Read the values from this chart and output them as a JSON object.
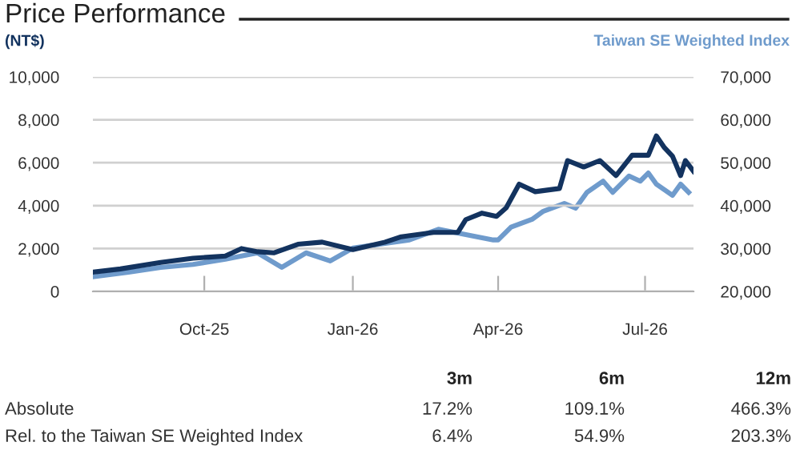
{
  "chart_data": {
    "type": "line",
    "title": "Price Performance",
    "ylabel": "(NT$)",
    "y2label": "Taiwan SE Weighted Index",
    "series": [
      {
        "color": "#13335f",
        "x": [
          "2025-07-24",
          "2025-08-10",
          "2025-09-04",
          "2025-09-24",
          "2025-10-14",
          "2025-10-24",
          "2025-11-03",
          "2025-11-13",
          "2025-11-28",
          "2025-12-13",
          "2026-01-01",
          "2026-01-21",
          "2026-01-31",
          "2026-02-20",
          "2026-03-07",
          "2026-03-12",
          "2026-03-22",
          "2026-03-31",
          "2026-04-06",
          "2026-04-14",
          "2026-04-24",
          "2026-05-09",
          "2026-05-14",
          "2026-05-24",
          "2026-06-03",
          "2026-06-13",
          "2026-06-23",
          "2026-07-03",
          "2026-07-08",
          "2026-07-13",
          "2026-07-18",
          "2026-07-23",
          "2026-07-26",
          "2026-07-31"
        ],
        "values": [
          900,
          1050,
          1350,
          1550,
          1650,
          2000,
          1850,
          1800,
          2200,
          2300,
          1950,
          2300,
          2550,
          2750,
          2750,
          3350,
          3650,
          3500,
          3900,
          5000,
          4650,
          4800,
          6100,
          5800,
          6100,
          5400,
          6350,
          6350,
          7250,
          6700,
          6300,
          5400,
          6100,
          5600
        ]
      },
      {
        "color": "#6f9bcc",
        "axis": "y2",
        "x": [
          "2025-07-24",
          "2025-08-15",
          "2025-09-04",
          "2025-09-24",
          "2025-10-14",
          "2025-11-03",
          "2025-11-18",
          "2025-12-03",
          "2025-12-18",
          "2026-01-01",
          "2026-01-21",
          "2026-02-05",
          "2026-02-23",
          "2026-03-29",
          "2026-04-01",
          "2026-04-09",
          "2026-04-22",
          "2026-04-29",
          "2026-05-12",
          "2026-05-19",
          "2026-05-26",
          "2026-06-05",
          "2026-06-11",
          "2026-06-21",
          "2026-06-28",
          "2026-07-03",
          "2026-07-08",
          "2026-07-18",
          "2026-07-23",
          "2026-07-28"
        ],
        "values": [
          23400,
          24500,
          25600,
          26300,
          27500,
          29000,
          25600,
          29000,
          27100,
          30100,
          31200,
          32000,
          34500,
          32000,
          32000,
          35000,
          36800,
          38700,
          40500,
          39400,
          43100,
          45700,
          43100,
          46900,
          45700,
          47600,
          45000,
          42400,
          45000,
          43100
        ]
      }
    ],
    "xlim": [
      "2025-07-24",
      "2026-07-31"
    ],
    "xticks": [
      {
        "value": "2025-10-01",
        "label": "Oct-25"
      },
      {
        "value": "2026-01-01",
        "label": "Jan-26"
      },
      {
        "value": "2026-04-01",
        "label": "Apr-26"
      },
      {
        "value": "2026-07-01",
        "label": "Jul-26"
      }
    ],
    "ylim": [
      0,
      10000
    ],
    "yticks": [
      {
        "value": 0,
        "label": "0"
      },
      {
        "value": 2000,
        "label": "2,000"
      },
      {
        "value": 4000,
        "label": "4,000"
      },
      {
        "value": 6000,
        "label": "6,000"
      },
      {
        "value": 8000,
        "label": "8,000"
      },
      {
        "value": 10000,
        "label": "10,000"
      }
    ],
    "y2lim": [
      20000,
      70000
    ],
    "y2ticks": [
      {
        "value": 20000,
        "label": "20,000"
      },
      {
        "value": 30000,
        "label": "30,000"
      },
      {
        "value": 40000,
        "label": "40,000"
      },
      {
        "value": 50000,
        "label": "50,000"
      },
      {
        "value": 60000,
        "label": "60,000"
      },
      {
        "value": 70000,
        "label": "70,000"
      }
    ],
    "grid": "y",
    "annotations": [
      "3m",
      "6m",
      "12m",
      "Absolute",
      "17.2%",
      "109.1%",
      "466.3%",
      "Rel. to the Taiwan SE Weighted Index",
      "6.4%",
      "54.9%",
      "203.3%"
    ]
  }
}
